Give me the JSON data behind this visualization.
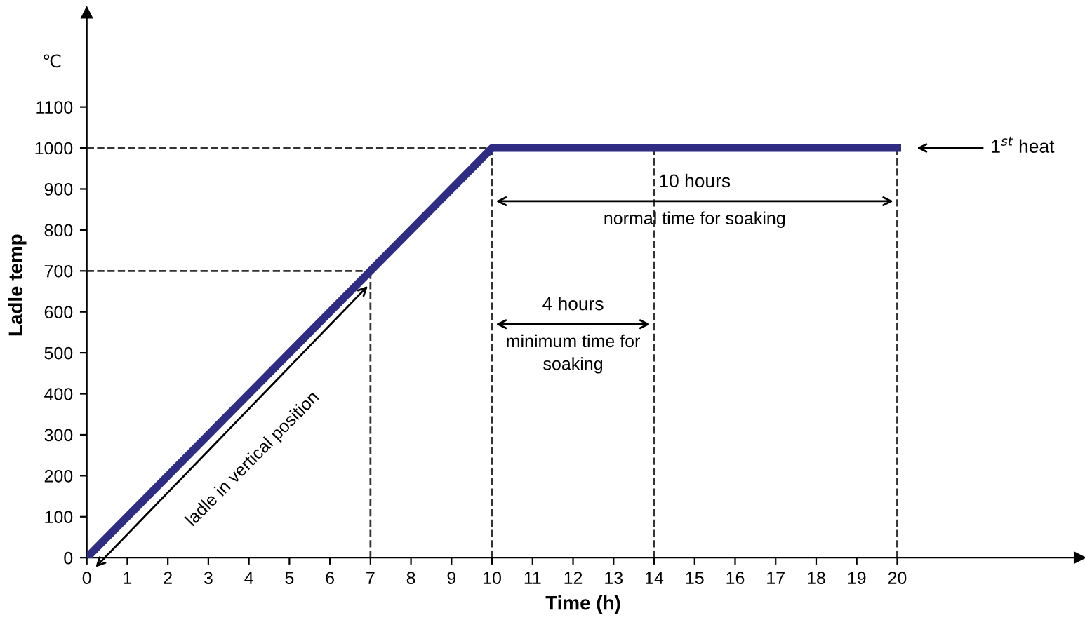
{
  "chart_data": {
    "type": "line",
    "xlabel": "Time (h)",
    "ylabel": "Ladle temp",
    "x": [
      0,
      10,
      20
    ],
    "series": [
      {
        "color": "#2f2c84",
        "values": [
          0,
          1000,
          1000
        ]
      }
    ],
    "xlim": [
      0,
      24.5
    ],
    "ylim": [
      0,
      1330
    ],
    "xticks": [
      0,
      1,
      2,
      3,
      4,
      5,
      6,
      7,
      8,
      9,
      10,
      11,
      12,
      13,
      14,
      15,
      16,
      17,
      18,
      19,
      20
    ],
    "yticks": [
      0,
      100,
      200,
      300,
      400,
      500,
      600,
      700,
      800,
      900,
      1000,
      1100
    ],
    "grid": false,
    "marker": "none",
    "line_style": "solid",
    "ref_lines": [
      {
        "axis": "y",
        "value": 1000,
        "line_style": "dashed",
        "color": "#333333"
      },
      {
        "axis": "y",
        "value": 700,
        "line_style": "dashed",
        "color": "#333333"
      },
      {
        "axis": "x",
        "value": 7,
        "line_style": "dashed",
        "color": "#333333"
      },
      {
        "axis": "x",
        "value": 10,
        "line_style": "dashed",
        "color": "#333333"
      },
      {
        "axis": "x",
        "value": 14,
        "line_style": "dashed",
        "color": "#333333"
      },
      {
        "axis": "x",
        "value": 20,
        "line_style": "dashed",
        "color": "#333333"
      }
    ],
    "annotations": [
      "℃",
      "1$^{st}$ heat",
      "10 hours",
      "normal time for soaking",
      "4 hours",
      "minimum time for\nsoaking",
      "ladle in vertical position"
    ]
  }
}
